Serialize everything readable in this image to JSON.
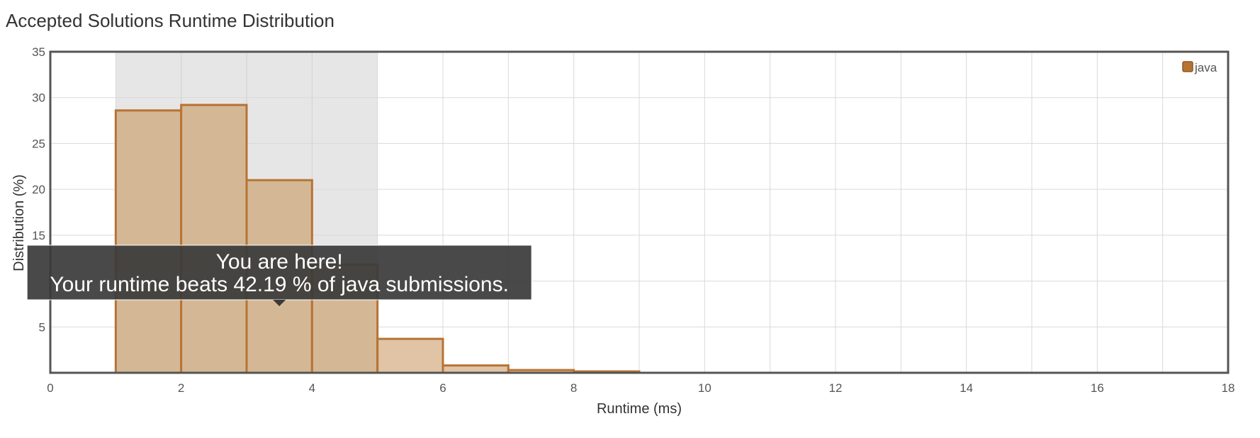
{
  "title": "Accepted Solutions Runtime Distribution",
  "chart_data": {
    "type": "bar",
    "title": "Accepted Solutions Runtime Distribution",
    "xlabel": "Runtime (ms)",
    "ylabel": "Distribution (%)",
    "xlim": [
      0,
      18
    ],
    "ylim": [
      0,
      35
    ],
    "x_ticks": [
      "0",
      "2",
      "4",
      "6",
      "8",
      "10",
      "12",
      "14",
      "16",
      "18"
    ],
    "y_ticks": [
      "5",
      "15",
      "20",
      "25",
      "30",
      "35"
    ],
    "grid": true,
    "legend_position": "top-right",
    "highlight_range": [
      1,
      5
    ],
    "series": [
      {
        "name": "java",
        "color": "#b87333",
        "bins": [
          {
            "start": 1,
            "end": 2,
            "value": 28.6
          },
          {
            "start": 2,
            "end": 3,
            "value": 29.2
          },
          {
            "start": 3,
            "end": 4,
            "value": 21.0
          },
          {
            "start": 4,
            "end": 5,
            "value": 11.8
          },
          {
            "start": 5,
            "end": 6,
            "value": 3.7
          },
          {
            "start": 6,
            "end": 7,
            "value": 0.8
          },
          {
            "start": 7,
            "end": 8,
            "value": 0.3
          },
          {
            "start": 8,
            "end": 9,
            "value": 0.15
          }
        ]
      }
    ],
    "tooltip": {
      "line1": "You are here!",
      "line2": "Your runtime beats 42.19 % of java submissions.",
      "x": 3.5
    }
  }
}
